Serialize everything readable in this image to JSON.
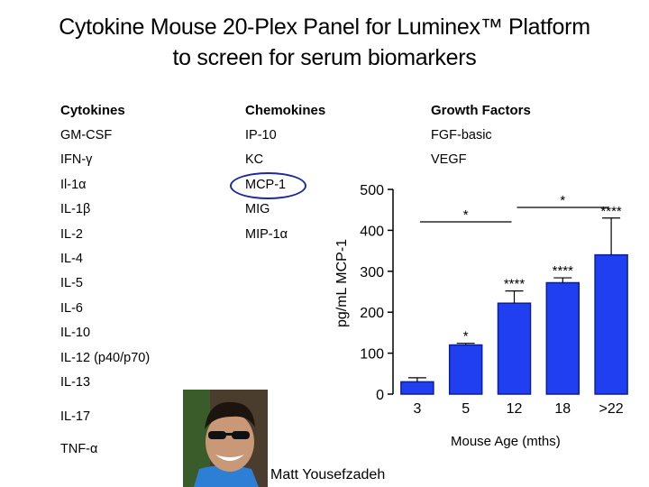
{
  "title": {
    "line1": "Cytokine Mouse 20-Plex Panel for Luminex™ Platform",
    "line2": "to screen for serum biomarkers"
  },
  "table": {
    "headers": [
      "Cytokines",
      "Chemokines",
      "Growth Factors"
    ],
    "cytokines": [
      "GM-CSF",
      "IFN-γ",
      "Il-1α",
      "IL-1β",
      "IL-2",
      "IL-4",
      "IL-5",
      "IL-6",
      "IL-10",
      "IL-12 (p40/p70)",
      "IL-13",
      "IL-17",
      "TNF-α"
    ],
    "chemokines": [
      "IP-10",
      "KC",
      "MCP-1",
      "MIG",
      "MIP-1α"
    ],
    "growth_factors": [
      "FGF-basic",
      "VEGF"
    ],
    "highlighted": "MCP-1",
    "highlight_color": "#1a2a9c"
  },
  "chart_data": {
    "type": "bar",
    "categories": [
      "3",
      "5",
      "12",
      "18",
      ">22"
    ],
    "values": [
      30,
      120,
      222,
      272,
      340
    ],
    "errors": [
      10,
      4,
      30,
      12,
      90
    ],
    "bar_labels": [
      "",
      "*",
      "****",
      "****",
      "****"
    ],
    "brackets": [
      {
        "from": 0,
        "to": 2,
        "label": "*"
      },
      {
        "from": 2,
        "to": 4,
        "label": "*"
      }
    ],
    "xlabel": "Mouse Age (mths)",
    "ylabel": "pg/mL MCP-1",
    "ylim": [
      0,
      500
    ],
    "yticks": [
      0,
      100,
      200,
      300,
      400,
      500
    ],
    "bar_color": "#1f3ff0",
    "bar_edge": "#0a1f9e"
  },
  "photo_caption": "Matt Yousefzadeh"
}
